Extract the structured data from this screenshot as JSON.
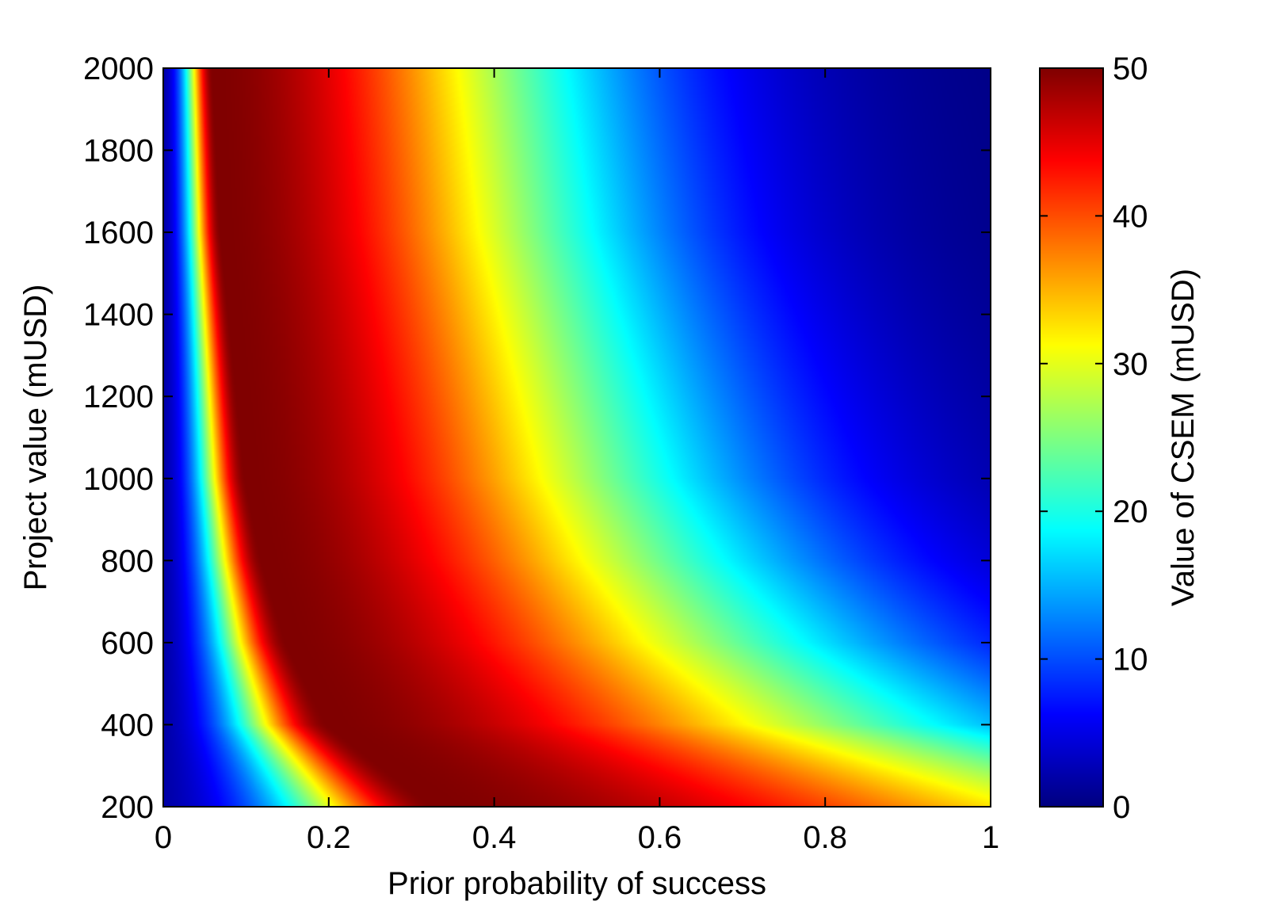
{
  "chart_data": {
    "type": "heatmap",
    "title": "",
    "xlabel": "Prior probability of success",
    "ylabel": "Project value (mUSD)",
    "colorbar_label": "Value of CSEM (mUSD)",
    "colormap": "jet",
    "xlim": [
      0,
      1
    ],
    "ylim": [
      200,
      2000
    ],
    "clim": [
      0,
      50
    ],
    "x_ticks": [
      0,
      0.2,
      0.4,
      0.6,
      0.8,
      1
    ],
    "x_tick_labels": [
      "0",
      "0.2",
      "0.4",
      "0.6",
      "0.8",
      "1"
    ],
    "y_ticks": [
      200,
      400,
      600,
      800,
      1000,
      1200,
      1400,
      1600,
      1800,
      2000
    ],
    "y_tick_labels": [
      "200",
      "400",
      "600",
      "800",
      "1000",
      "1200",
      "1400",
      "1600",
      "1800",
      "2000"
    ],
    "colorbar_ticks": [
      0,
      10,
      20,
      30,
      40,
      50
    ],
    "colorbar_tick_labels": [
      "0",
      "10",
      "20",
      "30",
      "40",
      "50"
    ],
    "peak_ridge": {
      "project_value": [
        200,
        400,
        600,
        800,
        1000,
        1200,
        1400,
        1600,
        1800,
        2000
      ],
      "prior_probability_at_max": [
        0.33,
        0.2,
        0.15,
        0.12,
        0.1,
        0.09,
        0.08,
        0.07,
        0.065,
        0.06
      ],
      "max_value": 50
    },
    "grid": false,
    "legend": "none"
  }
}
